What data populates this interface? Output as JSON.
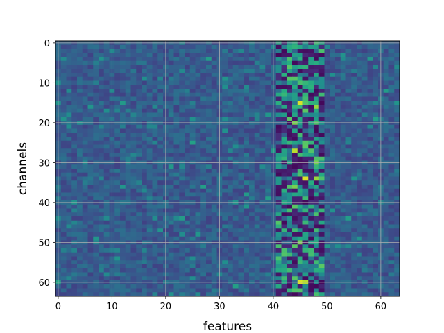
{
  "chart_data": {
    "type": "heatmap",
    "title": "",
    "xlabel": "features",
    "ylabel": "channels",
    "x_range": [
      0,
      63
    ],
    "y_range": [
      0,
      63
    ],
    "y_inverted": true,
    "x_ticks": [
      "0",
      "10",
      "20",
      "30",
      "40",
      "50",
      "60"
    ],
    "y_ticks": [
      "0",
      "10",
      "20",
      "30",
      "40",
      "50",
      "60"
    ],
    "grid": true,
    "colormap": "viridis",
    "n_rows": 64,
    "n_cols": 64,
    "hot_columns": [
      41,
      42,
      43,
      44,
      45,
      46,
      47,
      48,
      49
    ],
    "highlights": [
      {
        "row": 15,
        "col": 45,
        "value": 0.95
      },
      {
        "row": 16,
        "col": 48,
        "value": 0.85
      },
      {
        "row": 20,
        "col": 44,
        "value": 0.8
      },
      {
        "row": 27,
        "col": 44,
        "value": 0.9
      },
      {
        "row": 30,
        "col": 48,
        "value": 0.8
      },
      {
        "row": 34,
        "col": 46,
        "value": 0.95
      },
      {
        "row": 34,
        "col": 48,
        "value": 0.85
      },
      {
        "row": 50,
        "col": 45,
        "value": 0.8
      },
      {
        "row": 60,
        "col": 45,
        "value": 0.95
      },
      {
        "row": 60,
        "col": 46,
        "value": 0.9
      },
      {
        "row": 36,
        "col": 44,
        "value": 0.8
      }
    ]
  }
}
